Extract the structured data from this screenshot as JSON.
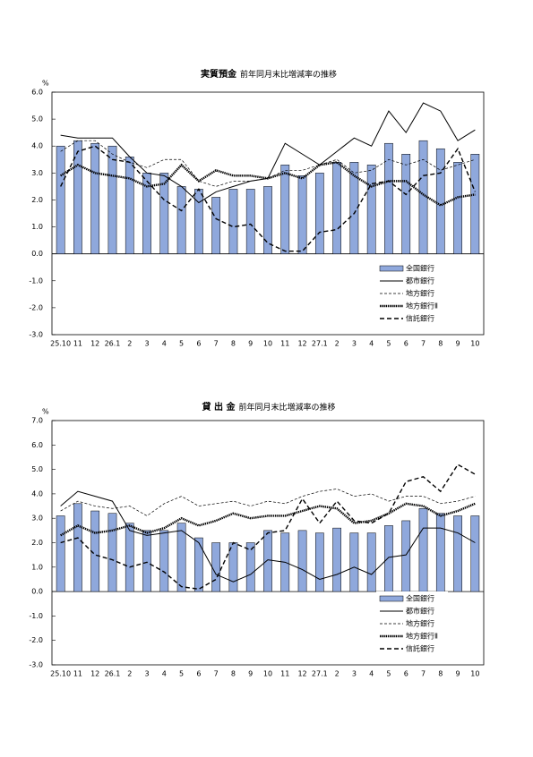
{
  "chart_data": [
    {
      "type": "combo",
      "title": "実質預金",
      "subtitle": "前年同月末比増減率の推移",
      "y_label": "%",
      "categories": [
        "25.10",
        "11",
        "12",
        "26.1",
        "2",
        "3",
        "4",
        "5",
        "6",
        "7",
        "8",
        "9",
        "10",
        "11",
        "12",
        "27.1",
        "2",
        "3",
        "4",
        "5",
        "6",
        "7",
        "8",
        "9",
        "10"
      ],
      "ylim": [
        -3,
        6
      ],
      "yticks": [
        {
          "value": -3,
          "label": "-3.0"
        },
        {
          "value": -2,
          "label": "-2.0"
        },
        {
          "value": -1,
          "label": "-1.0"
        },
        {
          "value": 0,
          "label": "0.0"
        },
        {
          "value": 1,
          "label": "1.0"
        },
        {
          "value": 2,
          "label": "2.0"
        },
        {
          "value": 3,
          "label": "3.0"
        },
        {
          "value": 4,
          "label": "4.0"
        },
        {
          "value": 5,
          "label": "5.0"
        },
        {
          "value": 6,
          "label": "6.0"
        }
      ],
      "legend": "lower right",
      "series": [
        {
          "name": "全国銀行",
          "type": "bar",
          "style": "bar",
          "color": "#8fa8dc",
          "values": [
            4.0,
            4.2,
            4.1,
            4.0,
            3.6,
            3.0,
            3.0,
            2.5,
            2.4,
            2.1,
            2.4,
            2.4,
            2.5,
            3.3,
            2.9,
            3.0,
            3.4,
            3.4,
            3.3,
            4.1,
            3.7,
            4.2,
            3.9,
            3.4,
            3.7
          ]
        },
        {
          "name": "都市銀行",
          "type": "line",
          "style": "solid",
          "color": "#000000",
          "values": [
            4.4,
            4.3,
            4.3,
            4.3,
            3.6,
            3.0,
            2.9,
            2.5,
            1.9,
            2.3,
            2.5,
            2.7,
            2.8,
            4.1,
            3.7,
            3.3,
            3.8,
            4.3,
            4.0,
            5.3,
            4.5,
            5.6,
            5.3,
            4.2,
            4.6
          ]
        },
        {
          "name": "地方銀行",
          "type": "line",
          "style": "thin-dashed",
          "color": "#000000",
          "values": [
            3.8,
            4.2,
            4.2,
            3.7,
            3.4,
            3.2,
            3.5,
            3.5,
            2.7,
            2.5,
            2.7,
            2.7,
            2.8,
            3.1,
            3.1,
            3.3,
            3.5,
            3.0,
            3.1,
            3.5,
            3.3,
            3.5,
            3.1,
            3.3,
            3.5
          ]
        },
        {
          "name": "地方銀行Ⅱ",
          "type": "line",
          "style": "thick-dotted",
          "color": "#000000",
          "values": [
            2.9,
            3.3,
            3.0,
            2.9,
            2.8,
            2.5,
            2.6,
            3.3,
            2.7,
            3.1,
            2.9,
            2.9,
            2.8,
            3.0,
            2.8,
            3.3,
            3.4,
            2.9,
            2.5,
            2.7,
            2.7,
            2.2,
            1.8,
            2.1,
            2.2
          ]
        },
        {
          "name": "信託銀行",
          "type": "line",
          "style": "dashed",
          "color": "#000000",
          "values": [
            2.5,
            3.8,
            4.0,
            3.5,
            3.4,
            2.7,
            2.0,
            1.6,
            2.4,
            1.3,
            1.0,
            1.1,
            0.4,
            0.1,
            0.1,
            0.8,
            0.9,
            1.5,
            2.6,
            2.7,
            2.2,
            2.9,
            3.0,
            3.9,
            2.3
          ]
        }
      ]
    },
    {
      "type": "combo",
      "title": "貸 出 金",
      "subtitle": "前年同月末比増減率の推移",
      "y_label": "%",
      "categories": [
        "25.10",
        "11",
        "12",
        "26.1",
        "2",
        "3",
        "4",
        "5",
        "6",
        "7",
        "8",
        "9",
        "10",
        "11",
        "12",
        "27.1",
        "2",
        "3",
        "4",
        "5",
        "6",
        "7",
        "8",
        "9",
        "10"
      ],
      "ylim": [
        -3,
        7
      ],
      "yticks": [
        {
          "value": -3,
          "label": "-3.0"
        },
        {
          "value": -2,
          "label": "-2.0"
        },
        {
          "value": -1,
          "label": "-1.0"
        },
        {
          "value": 0,
          "label": "0.0"
        },
        {
          "value": 1,
          "label": "1.0"
        },
        {
          "value": 2,
          "label": "2.0"
        },
        {
          "value": 3,
          "label": "3.0"
        },
        {
          "value": 4,
          "label": "4.0"
        },
        {
          "value": 5,
          "label": "5.0"
        },
        {
          "value": 6,
          "label": "6.0"
        },
        {
          "value": 7,
          "label": "7.0"
        }
      ],
      "legend": "lower right",
      "series": [
        {
          "name": "全国銀行",
          "type": "bar",
          "style": "bar",
          "color": "#8fa8dc",
          "values": [
            3.1,
            3.6,
            3.3,
            3.2,
            2.8,
            2.5,
            2.5,
            2.8,
            2.2,
            2.0,
            2.0,
            2.0,
            2.5,
            2.4,
            2.5,
            2.4,
            2.6,
            2.4,
            2.4,
            2.7,
            2.9,
            3.4,
            3.2,
            3.1,
            3.1
          ]
        },
        {
          "name": "都市銀行",
          "type": "line",
          "style": "solid",
          "color": "#000000",
          "values": [
            3.5,
            4.1,
            3.9,
            3.7,
            2.5,
            2.3,
            2.4,
            2.5,
            2.0,
            0.7,
            0.4,
            0.7,
            1.3,
            1.2,
            0.9,
            0.5,
            0.7,
            1.0,
            0.7,
            1.4,
            1.5,
            2.6,
            2.6,
            2.4,
            2.0
          ]
        },
        {
          "name": "地方銀行",
          "type": "line",
          "style": "thin-dashed",
          "color": "#000000",
          "values": [
            3.3,
            3.7,
            3.5,
            3.4,
            3.5,
            3.1,
            3.6,
            3.9,
            3.5,
            3.6,
            3.7,
            3.5,
            3.7,
            3.6,
            3.9,
            4.1,
            4.2,
            3.9,
            4.0,
            3.7,
            3.9,
            3.9,
            3.6,
            3.7,
            3.9
          ]
        },
        {
          "name": "地方銀行Ⅱ",
          "type": "line",
          "style": "thick-dotted",
          "color": "#000000",
          "values": [
            2.3,
            2.7,
            2.4,
            2.5,
            2.7,
            2.4,
            2.6,
            3.0,
            2.7,
            2.9,
            3.2,
            3.0,
            3.1,
            3.1,
            3.3,
            3.5,
            3.4,
            2.8,
            2.9,
            3.2,
            3.6,
            3.5,
            3.1,
            3.3,
            3.6
          ]
        },
        {
          "name": "信託銀行",
          "type": "line",
          "style": "dashed",
          "color": "#000000",
          "values": [
            2.0,
            2.2,
            1.5,
            1.3,
            1.0,
            1.2,
            0.8,
            0.2,
            0.1,
            0.5,
            2.0,
            1.7,
            2.4,
            2.5,
            3.8,
            2.8,
            3.7,
            2.9,
            2.8,
            3.2,
            4.5,
            4.7,
            4.1,
            5.2,
            4.8
          ]
        }
      ]
    }
  ]
}
